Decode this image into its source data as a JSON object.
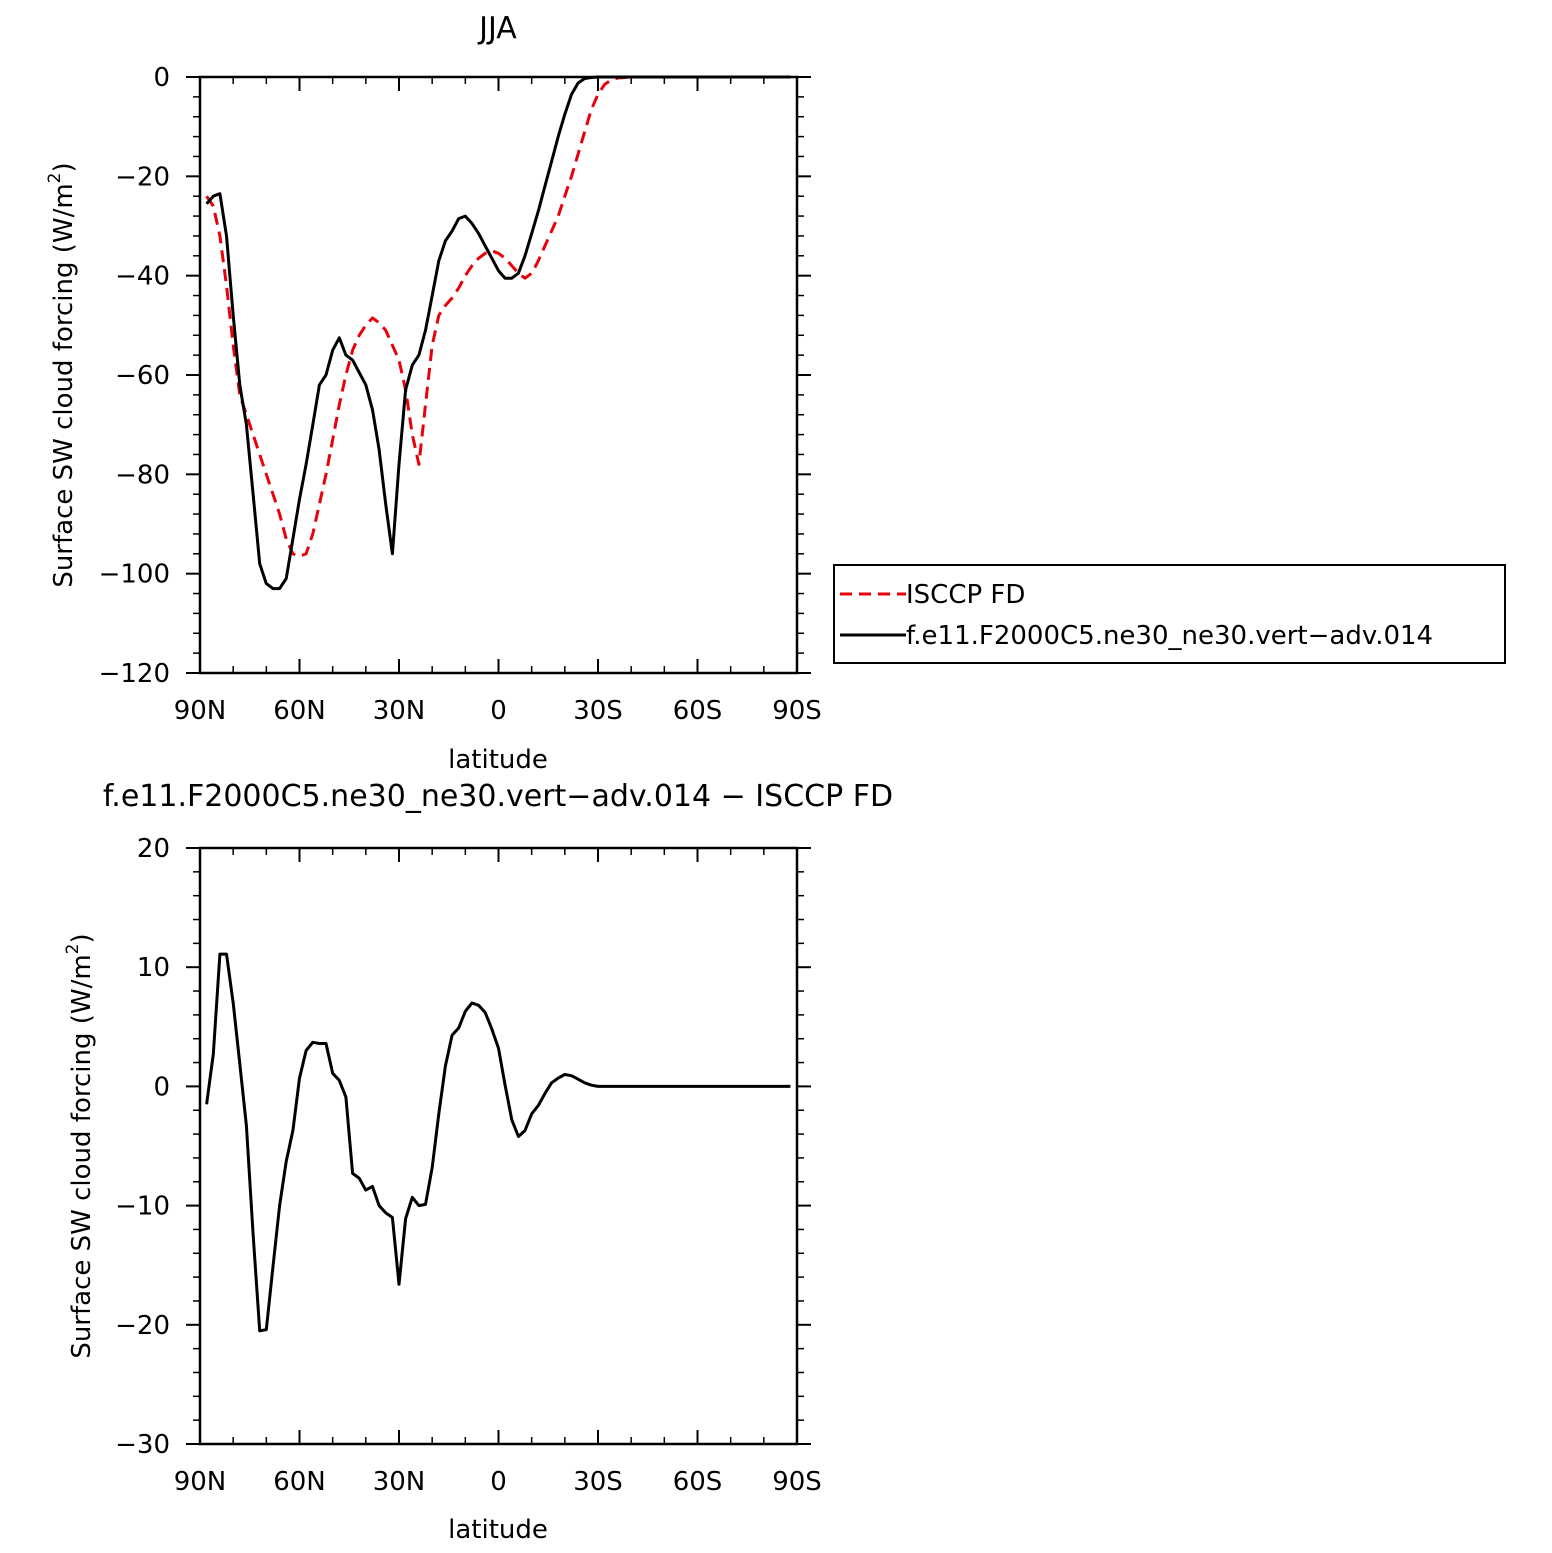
{
  "chart_data": [
    {
      "type": "line",
      "title": "JJA",
      "xlabel": "latitude",
      "ylabel": "Surface SW cloud forcing (W/m²)",
      "ylabel_main": "Surface SW cloud forcing (W/m",
      "ylabel_sup": "2",
      "ylabel_end": ")",
      "xlim": [
        90,
        -90
      ],
      "ylim": [
        -120,
        0
      ],
      "x_ticks": [
        90,
        60,
        30,
        0,
        -30,
        -60,
        -90
      ],
      "x_tick_labels": [
        "90N",
        "60N",
        "30N",
        "0",
        "30S",
        "60S",
        "90S"
      ],
      "y_ticks": [
        0,
        -20,
        -40,
        -60,
        -80,
        -100,
        -120
      ],
      "y_tick_labels": [
        "0",
        "−20",
        "−40",
        "−60",
        "−80",
        "−100",
        "−120"
      ],
      "legend_placement": "right",
      "series": [
        {
          "name": "ISCCP FD",
          "color": "#e8000b",
          "style": "dashed",
          "x": [
            88,
            86,
            84,
            82,
            80,
            78,
            76,
            74,
            72,
            70,
            68,
            66,
            64,
            62,
            60,
            58,
            56,
            54,
            52,
            50,
            48,
            46,
            44,
            42,
            40,
            38,
            36,
            34,
            32,
            30,
            28,
            26,
            24,
            22,
            20,
            18,
            16,
            14,
            12,
            10,
            8,
            6,
            4,
            2,
            0,
            -2,
            -4,
            -6,
            -8,
            -10,
            -12,
            -14,
            -16,
            -18,
            -20,
            -22,
            -24,
            -26,
            -28,
            -30,
            -32,
            -34,
            -36,
            -38,
            -40,
            -42,
            -44,
            -46,
            -48,
            -50,
            -52,
            -54,
            -56,
            -58,
            -60,
            -62,
            -64,
            -66,
            -68,
            -70,
            -72,
            -74,
            -76,
            -78,
            -80,
            -82,
            -84,
            -86,
            -88
          ],
          "values": [
            -24,
            -26,
            -32,
            -42,
            -54,
            -64,
            -68,
            -72,
            -76,
            -80,
            -84,
            -88,
            -93,
            -96,
            -96.5,
            -96,
            -92,
            -86,
            -80,
            -73,
            -66,
            -60,
            -55,
            -52,
            -50,
            -48.5,
            -49.5,
            -51,
            -54,
            -57,
            -63,
            -72,
            -78,
            -66,
            -54,
            -48,
            -46,
            -44.5,
            -42.5,
            -40,
            -38,
            -36.5,
            -35.5,
            -35,
            -35.5,
            -36.5,
            -38,
            -39.5,
            -40.5,
            -39.5,
            -37,
            -34,
            -31,
            -28,
            -24,
            -20,
            -15.5,
            -11,
            -6.5,
            -3.5,
            -1.5,
            -0.6,
            -0.2,
            -0.1,
            0,
            0,
            0,
            0,
            0,
            0,
            0,
            0,
            0,
            0,
            0,
            0,
            0,
            0,
            0,
            0,
            0,
            0,
            0,
            0,
            0,
            0,
            0,
            0,
            0
          ]
        },
        {
          "name": "f.e11.F2000C5.ne30_ne30.vert−adv.014",
          "color": "#000000",
          "style": "solid",
          "x": [
            88,
            86,
            84,
            82,
            80,
            78,
            76,
            74,
            72,
            70,
            68,
            66,
            64,
            62,
            60,
            58,
            56,
            54,
            52,
            50,
            48,
            46,
            44,
            42,
            40,
            38,
            36,
            34,
            32,
            30,
            28,
            26,
            24,
            22,
            20,
            18,
            16,
            14,
            12,
            10,
            8,
            6,
            4,
            2,
            0,
            -2,
            -4,
            -6,
            -8,
            -10,
            -12,
            -14,
            -16,
            -18,
            -20,
            -22,
            -24,
            -26,
            -28,
            -30,
            -32,
            -34,
            -36,
            -38,
            -40,
            -42,
            -44,
            -46,
            -48,
            -50,
            -52,
            -54,
            -56,
            -58,
            -60,
            -62,
            -64,
            -66,
            -68,
            -70,
            -72,
            -74,
            -76,
            -78,
            -80,
            -82,
            -84,
            -86,
            -88
          ],
          "values": [
            -25.5,
            -24,
            -23.5,
            -32,
            -48,
            -62,
            -70,
            -84,
            -98,
            -102,
            -103,
            -103,
            -101,
            -93,
            -85,
            -78,
            -70,
            -62,
            -60,
            -55,
            -52.5,
            -56,
            -57,
            -59.5,
            -62,
            -67,
            -75,
            -86,
            -96,
            -78,
            -63,
            -58,
            -56,
            -51,
            -44,
            -37,
            -33,
            -31,
            -28.5,
            -28,
            -29.5,
            -31.5,
            -34,
            -36.5,
            -39,
            -40.5,
            -40.5,
            -39.5,
            -36,
            -31.5,
            -27,
            -22,
            -17,
            -12,
            -7.5,
            -3.5,
            -1.2,
            -0.3,
            -0.1,
            0,
            0,
            0,
            0,
            0,
            0,
            0,
            0,
            0,
            0,
            0,
            0,
            0,
            0,
            0,
            0,
            0,
            0,
            0,
            0,
            0,
            0,
            0,
            0,
            0,
            0,
            0,
            0,
            0,
            0
          ]
        }
      ]
    },
    {
      "type": "line",
      "title": "f.e11.F2000C5.ne30_ne30.vert−adv.014 − ISCCP FD",
      "xlabel": "latitude",
      "ylabel": "Surface SW cloud forcing (W/m²)",
      "ylabel_main": "Surface SW cloud forcing (W/m",
      "ylabel_sup": "2",
      "ylabel_end": ")",
      "xlim": [
        90,
        -90
      ],
      "ylim": [
        -30,
        20
      ],
      "x_ticks": [
        90,
        60,
        30,
        0,
        -30,
        -60,
        -90
      ],
      "x_tick_labels": [
        "90N",
        "60N",
        "30N",
        "0",
        "30S",
        "60S",
        "90S"
      ],
      "y_ticks": [
        20,
        10,
        0,
        -10,
        -20,
        -30
      ],
      "y_tick_labels": [
        "20",
        "10",
        "0",
        "−10",
        "−20",
        "−30"
      ],
      "series": [
        {
          "color": "#000000",
          "style": "solid",
          "x": [
            88,
            86,
            84,
            82,
            80,
            78,
            76,
            74,
            72,
            70,
            68,
            66,
            64,
            62,
            60,
            58,
            56,
            54,
            52,
            50,
            48,
            46,
            44,
            42,
            40,
            38,
            36,
            34,
            32,
            30,
            28,
            26,
            24,
            22,
            20,
            18,
            16,
            14,
            12,
            10,
            8,
            6,
            4,
            2,
            0,
            -2,
            -4,
            -6,
            -8,
            -10,
            -12,
            -14,
            -16,
            -18,
            -20,
            -22,
            -24,
            -26,
            -28,
            -30,
            -32,
            -34,
            -36,
            -38,
            -40,
            -42,
            -44,
            -46,
            -48,
            -50,
            -52,
            -54,
            -56,
            -58,
            -60,
            -62,
            -64,
            -66,
            -68,
            -70,
            -72,
            -74,
            -76,
            -78,
            -80,
            -82,
            -84,
            -86,
            -88
          ],
          "values": [
            -1.5,
            2.7,
            11.1,
            11.1,
            7,
            1.9,
            -3.3,
            -12.4,
            -20.5,
            -20.4,
            -15.1,
            -10,
            -6.3,
            -3.7,
            0.7,
            3,
            3.7,
            3.6,
            3.6,
            1.1,
            0.5,
            -0.9,
            -7.3,
            -7.7,
            -8.7,
            -8.4,
            -10,
            -10.6,
            -11,
            -16.6,
            -11.1,
            -9.3,
            -10,
            -9.9,
            -6.8,
            -2.3,
            1.7,
            4.3,
            4.9,
            6.3,
            7,
            6.8,
            6.2,
            4.8,
            3.2,
            0.1,
            -2.8,
            -4.2,
            -3.7,
            -2.3,
            -1.6,
            -0.6,
            0.3,
            0.7,
            1,
            0.9,
            0.6,
            0.3,
            0.1,
            0,
            0,
            0,
            0,
            0,
            0,
            0,
            0,
            0,
            0,
            0,
            0,
            0,
            0,
            0,
            0,
            0,
            0,
            0,
            0,
            0,
            0,
            0,
            0,
            0,
            0,
            0,
            0,
            0,
            0
          ]
        }
      ]
    }
  ]
}
